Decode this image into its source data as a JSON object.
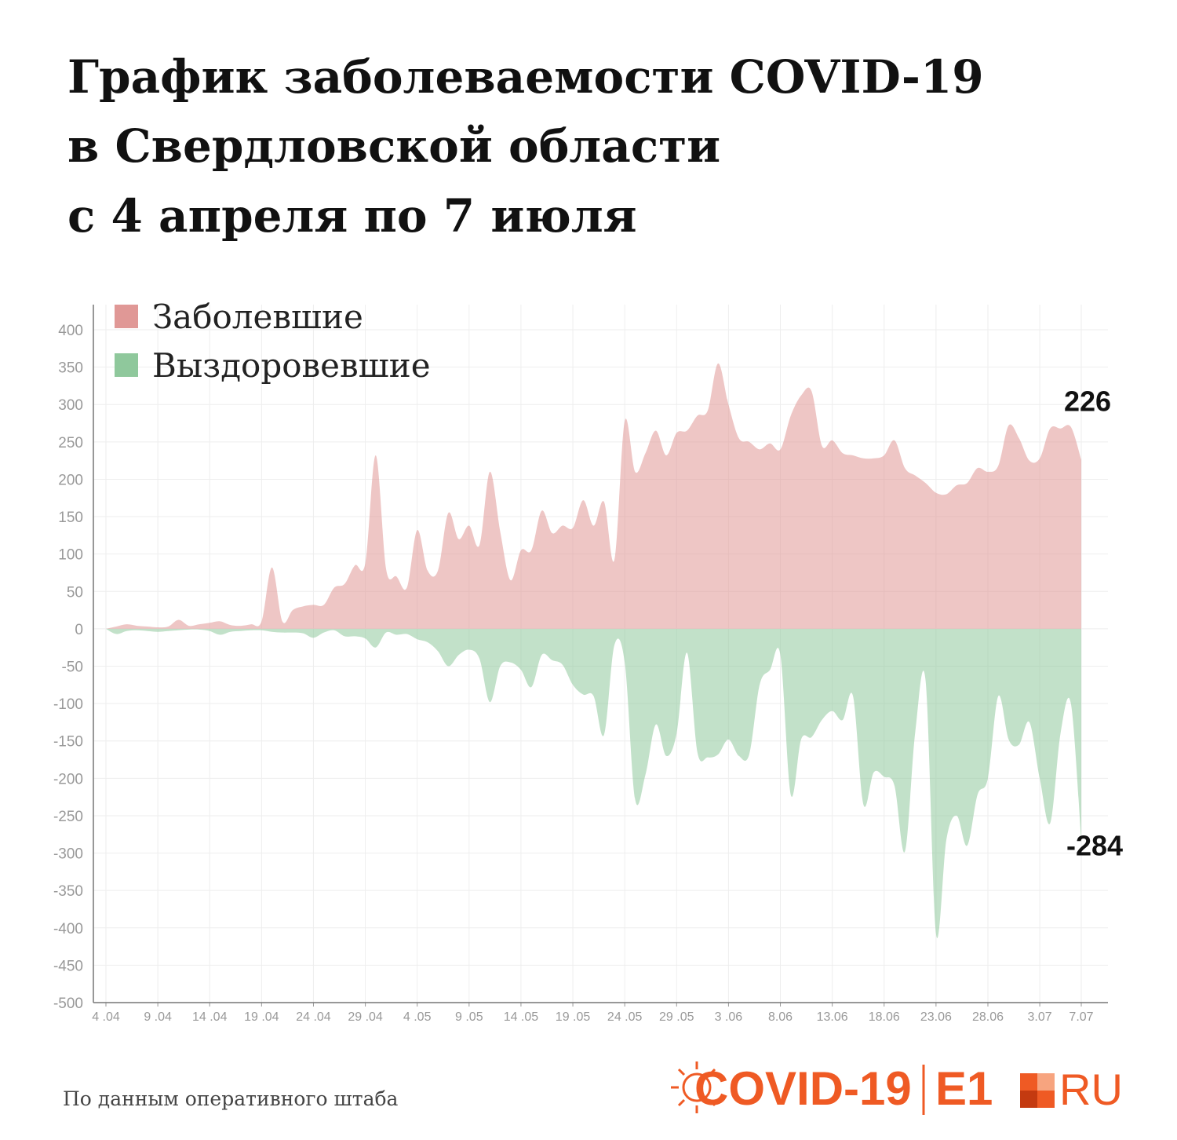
{
  "chart_data": {
    "type": "area",
    "title": [
      "График заболеваемости COVID-19",
      "в Свердловской области",
      "с 4 апреля по 7 июля"
    ],
    "categories": [
      "4 .04",
      null,
      null,
      null,
      null,
      "9 .04",
      null,
      null,
      null,
      null,
      "14 .04",
      null,
      null,
      null,
      null,
      "19 .04",
      null,
      null,
      null,
      null,
      "24 .04",
      null,
      null,
      null,
      null,
      "29 .04",
      null,
      null,
      null,
      null,
      "4 .05",
      null,
      null,
      null,
      null,
      "9 .05",
      null,
      null,
      null,
      null,
      "14 .05",
      null,
      null,
      null,
      null,
      "19 .05",
      null,
      null,
      null,
      null,
      "24 .05",
      null,
      null,
      null,
      null,
      "29 .05",
      null,
      null,
      null,
      null,
      "3 .06",
      null,
      null,
      null,
      null,
      "8.06",
      null,
      null,
      null,
      null,
      "13.06",
      null,
      null,
      null,
      null,
      "18.06",
      null,
      null,
      null,
      null,
      "23.06",
      null,
      null,
      null,
      null,
      "28.06",
      null,
      null,
      null,
      null,
      "3.07",
      null,
      null,
      null,
      "7.07"
    ],
    "series": [
      {
        "name": "Заболевшие",
        "color": "#e09896",
        "values": [
          0,
          3,
          6,
          4,
          3,
          2,
          3,
          12,
          4,
          6,
          8,
          10,
          5,
          4,
          6,
          10,
          82,
          10,
          25,
          30,
          32,
          32,
          55,
          60,
          85,
          88,
          232,
          80,
          70,
          55,
          132,
          78,
          78,
          155,
          120,
          138,
          112,
          210,
          130,
          65,
          105,
          105,
          158,
          128,
          138,
          135,
          172,
          138,
          170,
          92,
          278,
          210,
          235,
          265,
          232,
          262,
          265,
          285,
          292,
          355,
          300,
          255,
          250,
          240,
          248,
          240,
          285,
          312,
          318,
          245,
          252,
          235,
          232,
          228,
          228,
          232,
          252,
          215,
          205,
          195,
          182,
          180,
          192,
          195,
          215,
          210,
          218,
          272,
          255,
          225,
          228,
          268,
          268,
          270,
          226
        ]
      },
      {
        "name": "Выздоровевшие",
        "color": "#8fc89c",
        "values": [
          0,
          -7,
          -3,
          -2,
          -3,
          -4,
          -3,
          -2,
          -1,
          -1,
          -3,
          -8,
          -4,
          -3,
          -2,
          -2,
          -4,
          -5,
          -5,
          -6,
          -12,
          -5,
          -2,
          -10,
          -10,
          -13,
          -25,
          -5,
          -8,
          -7,
          -14,
          -18,
          -30,
          -50,
          -35,
          -28,
          -40,
          -98,
          -50,
          -45,
          -55,
          -78,
          -35,
          -42,
          -48,
          -75,
          -88,
          -90,
          -142,
          -22,
          -45,
          -228,
          -195,
          -128,
          -170,
          -140,
          -32,
          -165,
          -172,
          -168,
          -148,
          -170,
          -168,
          -75,
          -55,
          -35,
          -222,
          -148,
          -145,
          -122,
          -110,
          -122,
          -90,
          -235,
          -192,
          -198,
          -210,
          -298,
          -138,
          -70,
          -408,
          -282,
          -250,
          -290,
          -222,
          -200,
          -90,
          -148,
          -155,
          -125,
          -200,
          -260,
          -140,
          -100,
          -284
        ]
      }
    ],
    "ylim": [
      -500,
      400
    ],
    "yticks": [
      -500,
      -450,
      -400,
      -350,
      -300,
      -250,
      -200,
      -150,
      -100,
      -50,
      0,
      50,
      100,
      150,
      200,
      250,
      300,
      350,
      400
    ],
    "grid": true,
    "legend": "top-left",
    "source": "По данным оперативного штаба"
  },
  "logo": {
    "covid": "COVID-19",
    "e1": "E1",
    "ru": "RU"
  }
}
